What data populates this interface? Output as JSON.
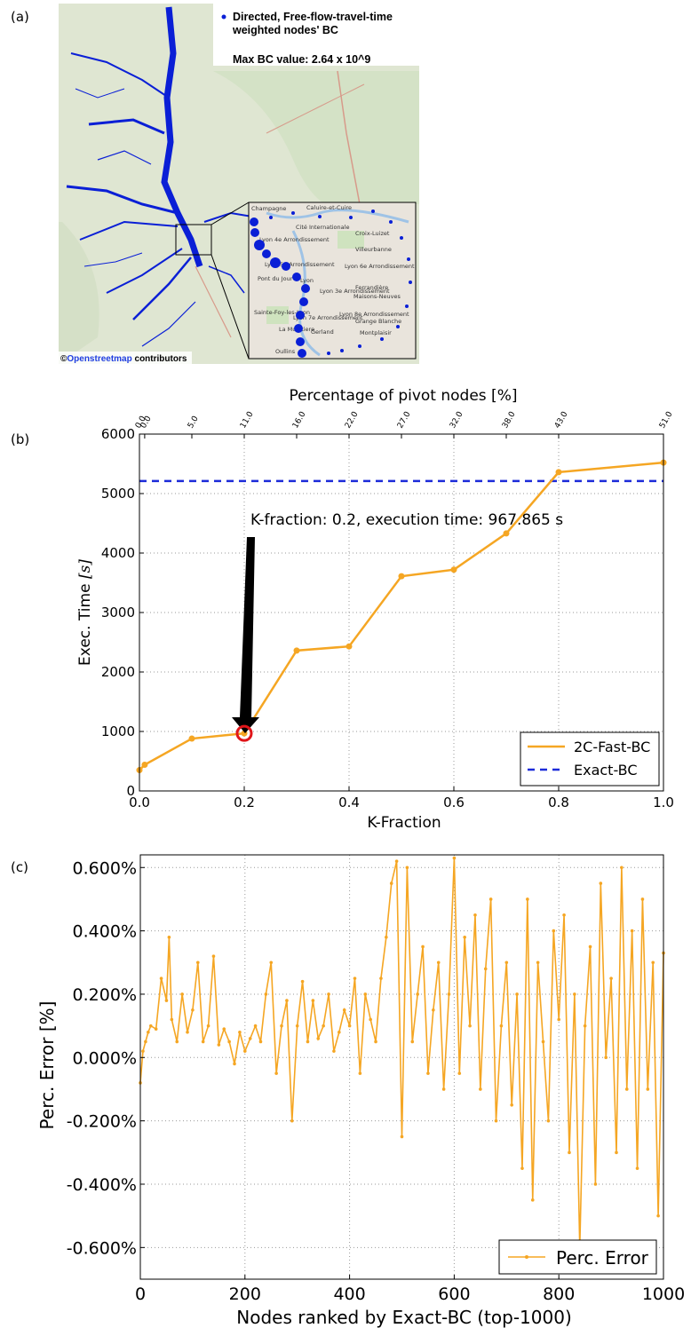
{
  "panels": {
    "a": "(a)",
    "b": "(b)",
    "c": "(c)"
  },
  "map_panel": {
    "legend_line1": "Directed, Free-flow-travel-time",
    "legend_line2": "weighted nodes' BC",
    "max_label": "Max BC value: 2.64 x 10^9",
    "credit_prefix": "©",
    "credit_link": "Openstreetmap",
    "credit_suffix": " contributors",
    "place_labels": [
      "Caluire-et-Cuire",
      "Cité Internationale",
      "Villeurbanne",
      "Croix-Luizet",
      "Lyon 4e Arrondissement",
      "Lyon 6e Arrondissement",
      "Lyon 5e Arrondissement",
      "Lyon",
      "Pont du Jour",
      "Ferrandière",
      "Maisons-Neuves",
      "Lyon 3e Arrondissement",
      "Grange Blanche",
      "Lyon 8e Arrondissement",
      "Sainte-Foy-les-Lyon",
      "Lyon 7e Arrondissement",
      "Oullins",
      "Champagne",
      "La Mulatiere",
      "Gerland",
      "Montplaisir"
    ],
    "colors": {
      "nodes": "#0a1fd6",
      "map_bg": "#dfe6d2",
      "zoom_bg": "#e9e4dc"
    }
  },
  "chart_data": [
    {
      "type": "line",
      "title": "",
      "xlabel": "K-Fraction",
      "ylabel": "Exec. Time [s]",
      "ylabel_text": "Exec. Time ",
      "ylabel_unit": "[s]",
      "top_axis_label": "Percentage of pivot nodes [%]",
      "xlim": [
        0.0,
        1.0
      ],
      "ylim": [
        0,
        6000
      ],
      "x_ticks": [
        "0.0",
        "0.2",
        "0.4",
        "0.6",
        "0.8",
        "1.0"
      ],
      "y_ticks": [
        "0",
        "1000",
        "2000",
        "3000",
        "4000",
        "5000",
        "6000"
      ],
      "top_ticks": [
        {
          "x": 0.0,
          "label": "0.0"
        },
        {
          "x": 0.01,
          "label": "0.0"
        },
        {
          "x": 0.1,
          "label": "5.0"
        },
        {
          "x": 0.2,
          "label": "11.0"
        },
        {
          "x": 0.3,
          "label": "16.0"
        },
        {
          "x": 0.4,
          "label": "22.0"
        },
        {
          "x": 0.5,
          "label": "27.0"
        },
        {
          "x": 0.6,
          "label": "32.0"
        },
        {
          "x": 0.7,
          "label": "38.0"
        },
        {
          "x": 0.8,
          "label": "43.0"
        },
        {
          "x": 1.0,
          "label": "51.0"
        }
      ],
      "grid": true,
      "series": [
        {
          "name": "2C-Fast-BC",
          "color": "#f5a623",
          "x": [
            0.0,
            0.01,
            0.1,
            0.2,
            0.3,
            0.4,
            0.5,
            0.6,
            0.7,
            0.8,
            1.0
          ],
          "y": [
            350,
            440,
            880,
            967.865,
            2360,
            2430,
            3610,
            3720,
            4330,
            5360,
            5520
          ]
        },
        {
          "name": "Exact-BC",
          "color": "#1c2bd9",
          "style": "dashed",
          "x": [
            0.0,
            1.0
          ],
          "y": [
            5210,
            5210
          ]
        }
      ],
      "annotation": {
        "text": "K-fraction: 0.2, execution time: 967.865 s",
        "x": 0.2,
        "y": 967.865,
        "marker_color": "#e0161a"
      },
      "legend_position": "lower right"
    },
    {
      "type": "line",
      "title": "",
      "xlabel": "Nodes ranked by Exact-BC (top-1000)",
      "ylabel": "Perc. Error [%]",
      "xlim": [
        0,
        1000
      ],
      "ylim": [
        -0.7,
        0.64
      ],
      "x_ticks": [
        "0",
        "200",
        "400",
        "600",
        "800",
        "1000"
      ],
      "y_ticks": [
        {
          "v": 0.6,
          "label": "0.600%"
        },
        {
          "v": 0.4,
          "label": "0.400%"
        },
        {
          "v": 0.2,
          "label": "0.200%"
        },
        {
          "v": 0.0,
          "label": "0.000%"
        },
        {
          "v": -0.2,
          "label": "-0.200%"
        },
        {
          "v": -0.4,
          "label": "-0.400%"
        },
        {
          "v": -0.6,
          "label": "-0.600%"
        }
      ],
      "grid": true,
      "series": [
        {
          "name": "Perc. Error",
          "color": "#f5a623",
          "x": [
            0,
            5,
            10,
            15,
            20,
            30,
            40,
            50,
            55,
            60,
            70,
            80,
            90,
            100,
            110,
            120,
            130,
            140,
            150,
            160,
            170,
            180,
            190,
            200,
            210,
            220,
            230,
            240,
            250,
            260,
            270,
            280,
            290,
            300,
            310,
            320,
            330,
            340,
            350,
            360,
            370,
            380,
            390,
            400,
            410,
            420,
            430,
            440,
            450,
            460,
            470,
            480,
            490,
            500,
            510,
            520,
            530,
            540,
            550,
            560,
            570,
            580,
            590,
            600,
            610,
            620,
            630,
            640,
            650,
            660,
            670,
            680,
            690,
            700,
            710,
            720,
            730,
            740,
            750,
            760,
            770,
            780,
            790,
            800,
            810,
            820,
            830,
            840,
            850,
            860,
            870,
            880,
            890,
            900,
            910,
            920,
            930,
            940,
            950,
            960,
            970,
            980,
            990,
            1000
          ],
          "y": [
            -0.08,
            0.02,
            0.05,
            0.08,
            0.1,
            0.09,
            0.25,
            0.18,
            0.38,
            0.12,
            0.05,
            0.2,
            0.08,
            0.15,
            0.3,
            0.05,
            0.1,
            0.32,
            0.04,
            0.09,
            0.05,
            -0.02,
            0.08,
            0.02,
            0.06,
            0.1,
            0.05,
            0.2,
            0.3,
            -0.05,
            0.1,
            0.18,
            -0.2,
            0.1,
            0.24,
            0.05,
            0.18,
            0.06,
            0.1,
            0.2,
            0.02,
            0.08,
            0.15,
            0.1,
            0.25,
            -0.05,
            0.2,
            0.12,
            0.05,
            0.25,
            0.38,
            0.55,
            0.62,
            -0.25,
            0.6,
            0.05,
            0.2,
            0.35,
            -0.05,
            0.15,
            0.3,
            -0.1,
            0.2,
            0.63,
            -0.05,
            0.38,
            0.1,
            0.45,
            -0.1,
            0.28,
            0.5,
            -0.2,
            0.1,
            0.3,
            -0.15,
            0.2,
            -0.35,
            0.5,
            -0.45,
            0.3,
            0.05,
            -0.2,
            0.4,
            0.12,
            0.45,
            -0.3,
            0.2,
            -0.6,
            0.1,
            0.35,
            -0.4,
            0.55,
            0.0,
            0.25,
            -0.3,
            0.6,
            -0.1,
            0.4,
            -0.35,
            0.5,
            -0.1,
            0.3,
            -0.5,
            0.33
          ]
        }
      ],
      "legend_position": "lower right"
    }
  ]
}
